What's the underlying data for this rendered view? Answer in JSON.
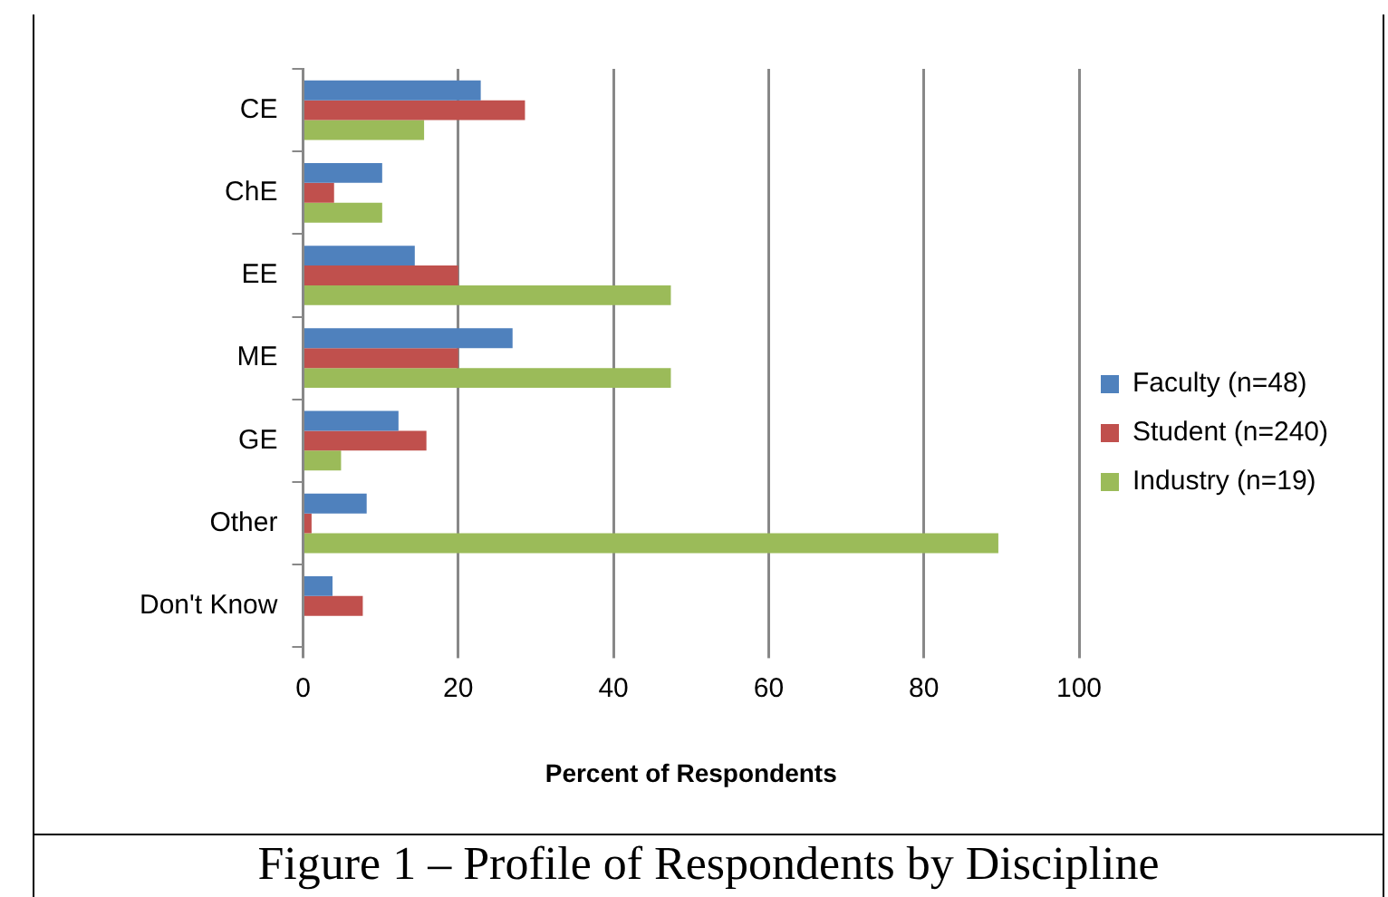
{
  "chart_data": {
    "type": "bar",
    "orientation": "horizontal",
    "xlabel": "Percent of Respondents",
    "categories": [
      "CE",
      "ChE",
      "EE",
      "ME",
      "GE",
      "Other",
      "Don't Know"
    ],
    "series": [
      {
        "name": "Faculty (n=48)",
        "color": "#4f81bd",
        "values": [
          22.9,
          10.2,
          14.4,
          27.0,
          12.3,
          8.2,
          3.8
        ]
      },
      {
        "name": "Student (n=240)",
        "color": "#c0504d",
        "values": [
          28.6,
          4.0,
          20.0,
          20.0,
          15.9,
          1.1,
          7.7
        ]
      },
      {
        "name": "Industry (n=19)",
        "color": "#9bbb59",
        "values": [
          15.6,
          10.2,
          47.4,
          47.4,
          4.9,
          89.6,
          null
        ]
      }
    ],
    "xlim": [
      0,
      100
    ],
    "xticks": [
      0,
      20,
      40,
      60,
      80,
      100
    ],
    "grid": "x",
    "legend": "right",
    "annotations": [
      "Figure 1 – Profile of Respondents by Discipline"
    ]
  }
}
